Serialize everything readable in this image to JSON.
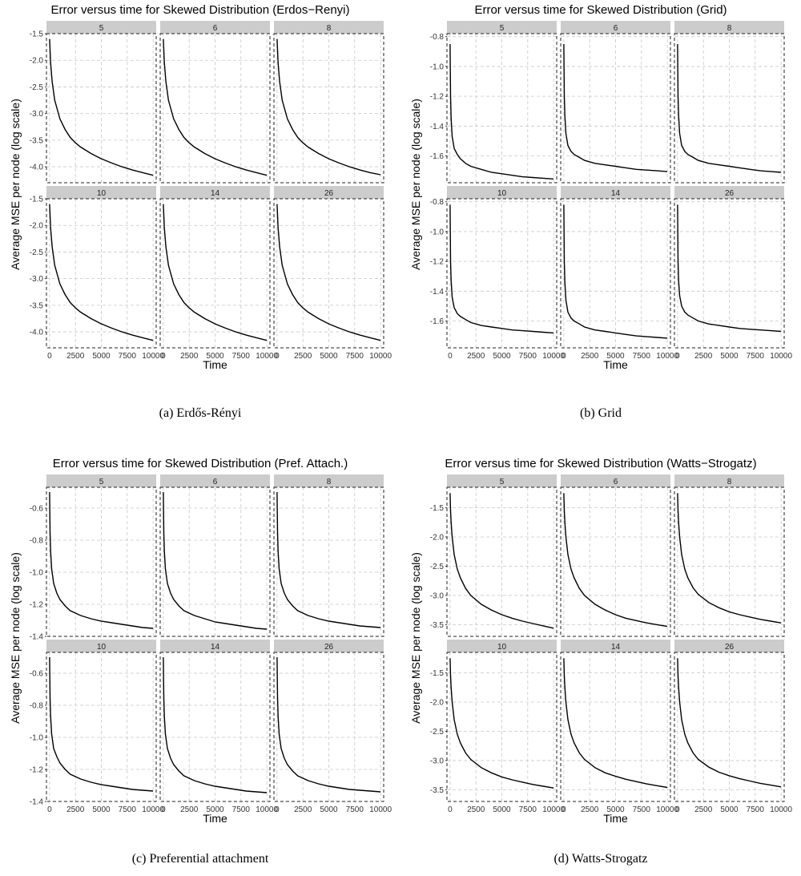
{
  "figures": [
    {
      "caption": "(a)  Erdős-Rényi",
      "chart_data": {
        "type": "line",
        "title": "Error versus time for Skewed Distribution (Erdos−Renyi)",
        "xlabel": "Time",
        "ylabel": "Average MSE per node (log scale)",
        "xlim": [
          -300,
          10300
        ],
        "ylim": [
          -4.3,
          -1.5
        ],
        "xticks": [
          0,
          2500,
          5000,
          7500,
          10000
        ],
        "xtick_labels": [
          "0",
          "2500",
          "5000",
          "7500",
          "10000"
        ],
        "yticks": [
          -1.5,
          -2.0,
          -2.5,
          -3.0,
          -3.5,
          -4.0
        ],
        "ytick_labels": [
          "-1.5",
          "-2.0",
          "-2.5",
          "-3.0",
          "-3.5",
          "-4.0"
        ],
        "facet_layout": "2 rows x 3 columns",
        "grid": true,
        "x": [
          0,
          100,
          250,
          500,
          1000,
          1500,
          2000,
          2500,
          3000,
          4000,
          5000,
          6000,
          7000,
          8000,
          9000,
          10000
        ],
        "panels": [
          {
            "label": "5",
            "values": [
              -1.6,
              -2.05,
              -2.4,
              -2.75,
              -3.1,
              -3.3,
              -3.45,
              -3.55,
              -3.63,
              -3.75,
              -3.85,
              -3.93,
              -4.0,
              -4.06,
              -4.11,
              -4.16
            ]
          },
          {
            "label": "6",
            "values": [
              -1.6,
              -2.05,
              -2.4,
              -2.75,
              -3.1,
              -3.3,
              -3.45,
              -3.55,
              -3.63,
              -3.75,
              -3.85,
              -3.93,
              -4.0,
              -4.06,
              -4.11,
              -4.16
            ]
          },
          {
            "label": "8",
            "values": [
              -1.6,
              -2.05,
              -2.4,
              -2.75,
              -3.1,
              -3.3,
              -3.45,
              -3.55,
              -3.63,
              -3.75,
              -3.85,
              -3.93,
              -4.0,
              -4.06,
              -4.11,
              -4.15
            ]
          },
          {
            "label": "10",
            "values": [
              -1.6,
              -2.05,
              -2.4,
              -2.75,
              -3.1,
              -3.3,
              -3.45,
              -3.55,
              -3.63,
              -3.75,
              -3.85,
              -3.93,
              -4.0,
              -4.06,
              -4.11,
              -4.16
            ]
          },
          {
            "label": "14",
            "values": [
              -1.6,
              -2.05,
              -2.4,
              -2.75,
              -3.1,
              -3.3,
              -3.45,
              -3.55,
              -3.63,
              -3.75,
              -3.85,
              -3.93,
              -4.0,
              -4.06,
              -4.11,
              -4.16
            ]
          },
          {
            "label": "26",
            "values": [
              -1.6,
              -2.05,
              -2.4,
              -2.75,
              -3.1,
              -3.3,
              -3.45,
              -3.55,
              -3.63,
              -3.75,
              -3.85,
              -3.93,
              -4.0,
              -4.06,
              -4.11,
              -4.16
            ]
          }
        ]
      }
    },
    {
      "caption": "(b)  Grid",
      "chart_data": {
        "type": "line",
        "title": "Error versus time for Skewed Distribution (Grid)",
        "xlabel": "Time",
        "ylabel": "Average MSE per node (log scale)",
        "xlim": [
          -300,
          10300
        ],
        "ylim": [
          -1.78,
          -0.78
        ],
        "xticks": [
          0,
          2500,
          5000,
          7500,
          10000
        ],
        "xtick_labels": [
          "0",
          "2500",
          "5000",
          "7500",
          "10000"
        ],
        "yticks": [
          -0.8,
          -1.0,
          -1.2,
          -1.4,
          -1.6
        ],
        "ytick_labels": [
          "-0.8",
          "-1.0",
          "-1.2",
          "-1.4",
          "-1.6"
        ],
        "facet_layout": "2 rows x 3 columns",
        "grid": true,
        "x": [
          0,
          50,
          100,
          200,
          400,
          700,
          1000,
          1500,
          2000,
          3000,
          4000,
          5000,
          6000,
          7000,
          8000,
          9000,
          10000
        ],
        "panels": [
          {
            "label": "5",
            "values": [
              -0.85,
              -1.2,
              -1.35,
              -1.47,
              -1.55,
              -1.59,
              -1.62,
              -1.65,
              -1.67,
              -1.69,
              -1.71,
              -1.72,
              -1.73,
              -1.74,
              -1.745,
              -1.75,
              -1.755
            ]
          },
          {
            "label": "6",
            "values": [
              -0.85,
              -1.2,
              -1.33,
              -1.45,
              -1.53,
              -1.57,
              -1.59,
              -1.61,
              -1.63,
              -1.65,
              -1.66,
              -1.67,
              -1.68,
              -1.69,
              -1.695,
              -1.7,
              -1.705
            ]
          },
          {
            "label": "8",
            "values": [
              -0.85,
              -1.2,
              -1.33,
              -1.45,
              -1.53,
              -1.57,
              -1.59,
              -1.61,
              -1.63,
              -1.65,
              -1.66,
              -1.67,
              -1.68,
              -1.69,
              -1.7,
              -1.705,
              -1.71
            ]
          },
          {
            "label": "10",
            "values": [
              -0.82,
              -1.2,
              -1.33,
              -1.44,
              -1.51,
              -1.55,
              -1.57,
              -1.59,
              -1.61,
              -1.63,
              -1.64,
              -1.65,
              -1.66,
              -1.665,
              -1.67,
              -1.675,
              -1.68
            ]
          },
          {
            "label": "14",
            "values": [
              -0.82,
              -1.2,
              -1.34,
              -1.46,
              -1.54,
              -1.58,
              -1.6,
              -1.62,
              -1.64,
              -1.66,
              -1.67,
              -1.68,
              -1.69,
              -1.7,
              -1.705,
              -1.71,
              -1.715
            ]
          },
          {
            "label": "26",
            "values": [
              -0.82,
              -1.2,
              -1.33,
              -1.43,
              -1.5,
              -1.54,
              -1.56,
              -1.58,
              -1.6,
              -1.62,
              -1.63,
              -1.64,
              -1.65,
              -1.655,
              -1.66,
              -1.665,
              -1.67
            ]
          }
        ]
      }
    },
    {
      "caption": "(c)  Preferential attachment",
      "chart_data": {
        "type": "line",
        "title": "Error versus time for Skewed Distribution (Pref. Attach.)",
        "xlabel": "Time",
        "ylabel": "Average MSE per node (log scale)",
        "xlim": [
          -300,
          10300
        ],
        "ylim": [
          -1.4,
          -0.47
        ],
        "xticks": [
          0,
          2500,
          5000,
          7500,
          10000
        ],
        "xtick_labels": [
          "0",
          "2500",
          "5000",
          "7500",
          "10000"
        ],
        "yticks": [
          -0.6,
          -0.8,
          -1.0,
          -1.2,
          -1.4
        ],
        "ytick_labels": [
          "-0.6",
          "-0.8",
          "-1.0",
          "-1.2",
          "-1.4"
        ],
        "facet_layout": "2 rows x 3 columns",
        "grid": true,
        "x": [
          0,
          50,
          100,
          200,
          400,
          700,
          1000,
          1500,
          2000,
          3000,
          4000,
          5000,
          6000,
          7000,
          8000,
          9000,
          10000
        ],
        "panels": [
          {
            "label": "5",
            "values": [
              -0.5,
              -0.75,
              -0.87,
              -0.98,
              -1.07,
              -1.13,
              -1.17,
              -1.21,
              -1.24,
              -1.27,
              -1.29,
              -1.305,
              -1.315,
              -1.325,
              -1.335,
              -1.345,
              -1.35
            ]
          },
          {
            "label": "6",
            "values": [
              -0.5,
              -0.75,
              -0.87,
              -0.98,
              -1.07,
              -1.13,
              -1.17,
              -1.21,
              -1.24,
              -1.27,
              -1.29,
              -1.31,
              -1.32,
              -1.33,
              -1.34,
              -1.35,
              -1.355
            ]
          },
          {
            "label": "8",
            "values": [
              -0.5,
              -0.75,
              -0.87,
              -0.98,
              -1.07,
              -1.13,
              -1.17,
              -1.21,
              -1.24,
              -1.27,
              -1.29,
              -1.305,
              -1.315,
              -1.325,
              -1.335,
              -1.34,
              -1.345
            ]
          },
          {
            "label": "10",
            "values": [
              -0.5,
              -0.75,
              -0.87,
              -0.98,
              -1.07,
              -1.12,
              -1.16,
              -1.2,
              -1.23,
              -1.26,
              -1.28,
              -1.295,
              -1.305,
              -1.315,
              -1.325,
              -1.33,
              -1.335
            ]
          },
          {
            "label": "14",
            "values": [
              -0.5,
              -0.75,
              -0.87,
              -0.98,
              -1.07,
              -1.13,
              -1.17,
              -1.21,
              -1.24,
              -1.27,
              -1.29,
              -1.305,
              -1.315,
              -1.325,
              -1.335,
              -1.34,
              -1.345
            ]
          },
          {
            "label": "26",
            "values": [
              -0.5,
              -0.75,
              -0.87,
              -0.98,
              -1.07,
              -1.13,
              -1.17,
              -1.21,
              -1.24,
              -1.27,
              -1.29,
              -1.305,
              -1.315,
              -1.325,
              -1.33,
              -1.335,
              -1.34
            ]
          }
        ]
      }
    },
    {
      "caption": "(d)  Watts-Strogatz",
      "chart_data": {
        "type": "line",
        "title": "Error versus time for Skewed Distribution (Watts−Strogatz)",
        "xlabel": "Time",
        "ylabel": "Average MSE per node (log scale)",
        "xlim": [
          -300,
          10300
        ],
        "ylim": [
          -3.7,
          -1.15
        ],
        "xticks": [
          0,
          2500,
          5000,
          7500,
          10000
        ],
        "xtick_labels": [
          "0",
          "2500",
          "5000",
          "7500",
          "10000"
        ],
        "yticks": [
          -1.5,
          -2.0,
          -2.5,
          -3.0,
          -3.5
        ],
        "ytick_labels": [
          "-1.5",
          "-2.0",
          "-2.5",
          "-3.0",
          "-3.5"
        ],
        "facet_layout": "2 rows x 3 columns",
        "grid": true,
        "x": [
          0,
          50,
          100,
          200,
          400,
          700,
          1000,
          1500,
          2000,
          3000,
          4000,
          5000,
          6000,
          7000,
          8000,
          9000,
          10000
        ],
        "panels": [
          {
            "label": "5",
            "values": [
              -1.25,
              -1.55,
              -1.75,
              -2.0,
              -2.3,
              -2.55,
              -2.7,
              -2.88,
              -3.0,
              -3.15,
              -3.25,
              -3.33,
              -3.39,
              -3.44,
              -3.48,
              -3.52,
              -3.56
            ]
          },
          {
            "label": "6",
            "values": [
              -1.25,
              -1.55,
              -1.75,
              -2.0,
              -2.3,
              -2.55,
              -2.7,
              -2.88,
              -3.0,
              -3.15,
              -3.25,
              -3.33,
              -3.39,
              -3.43,
              -3.47,
              -3.5,
              -3.53
            ]
          },
          {
            "label": "8",
            "values": [
              -1.25,
              -1.55,
              -1.75,
              -2.0,
              -2.3,
              -2.55,
              -2.7,
              -2.87,
              -2.98,
              -3.12,
              -3.21,
              -3.28,
              -3.33,
              -3.37,
              -3.41,
              -3.44,
              -3.47
            ]
          },
          {
            "label": "10",
            "values": [
              -1.25,
              -1.55,
              -1.75,
              -2.0,
              -2.3,
              -2.55,
              -2.7,
              -2.87,
              -2.98,
              -3.12,
              -3.21,
              -3.28,
              -3.33,
              -3.37,
              -3.41,
              -3.44,
              -3.47
            ]
          },
          {
            "label": "14",
            "values": [
              -1.25,
              -1.55,
              -1.75,
              -2.0,
              -2.3,
              -2.55,
              -2.7,
              -2.87,
              -2.98,
              -3.12,
              -3.21,
              -3.27,
              -3.32,
              -3.36,
              -3.4,
              -3.43,
              -3.46
            ]
          },
          {
            "label": "26",
            "values": [
              -1.25,
              -1.55,
              -1.75,
              -2.0,
              -2.3,
              -2.55,
              -2.7,
              -2.87,
              -2.98,
              -3.11,
              -3.2,
              -3.26,
              -3.31,
              -3.35,
              -3.39,
              -3.42,
              -3.45
            ]
          }
        ]
      }
    }
  ]
}
